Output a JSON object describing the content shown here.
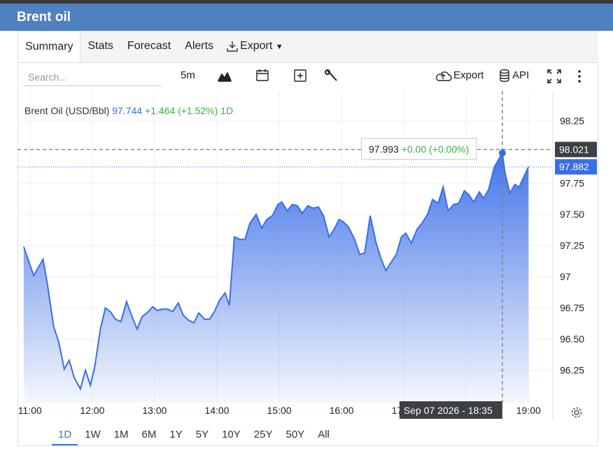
{
  "header": {
    "title": "Brent oil"
  },
  "tabs": [
    "Summary",
    "Stats",
    "Forecast",
    "Alerts",
    "Export"
  ],
  "toolbar": {
    "search": "Search...",
    "interval": "5m",
    "export": "Export",
    "api": "API"
  },
  "chart_data": {
    "type": "area",
    "legend": {
      "name": "Brent Oil (USD/Bbl)",
      "price": 97.744,
      "change": "+1.464 (+1.52%)",
      "interval": "1D"
    },
    "x": [
      10.9,
      11.06,
      11.21,
      11.28,
      11.38,
      11.46,
      11.55,
      11.63,
      11.71,
      11.81,
      11.89,
      11.97,
      12.04,
      12.13,
      12.21,
      12.29,
      12.37,
      12.46,
      12.55,
      12.63,
      12.72,
      12.8,
      12.88,
      12.97,
      13.04,
      13.12,
      13.21,
      13.29,
      13.38,
      13.46,
      13.55,
      13.63,
      13.71,
      13.8,
      13.88,
      13.96,
      14.04,
      14.13,
      14.2,
      14.28,
      14.37,
      14.45,
      14.53,
      14.63,
      14.72,
      14.8,
      14.89,
      14.98,
      15.04,
      15.13,
      15.21,
      15.29,
      15.37,
      15.46,
      15.54,
      15.63,
      15.71,
      15.8,
      15.88,
      15.96,
      16.03,
      16.11,
      16.21,
      16.29,
      16.37,
      16.46,
      16.55,
      16.63,
      16.71,
      16.8,
      16.88,
      16.96,
      17.03,
      17.12,
      17.21,
      17.29,
      17.38,
      17.46,
      17.55,
      17.63,
      17.71,
      17.8,
      17.88,
      17.97,
      18.04,
      18.12,
      18.21,
      18.28,
      18.36,
      18.45,
      18.58,
      18.62,
      18.7,
      18.78,
      18.85,
      19.0
    ],
    "series": [
      {
        "name": "Brent Oil (USD/Bbl)",
        "color": "#3a6ee8",
        "values": [
          97.24,
          97.01,
          97.14,
          96.94,
          96.6,
          96.48,
          96.26,
          96.33,
          96.19,
          96.1,
          96.25,
          96.13,
          96.28,
          96.58,
          96.75,
          96.72,
          96.66,
          96.64,
          96.8,
          96.69,
          96.58,
          96.68,
          96.71,
          96.76,
          96.73,
          96.74,
          96.74,
          96.72,
          96.79,
          96.69,
          96.65,
          96.63,
          96.71,
          96.66,
          96.66,
          96.72,
          96.81,
          96.87,
          96.77,
          97.32,
          97.3,
          97.3,
          97.43,
          97.5,
          97.39,
          97.46,
          97.49,
          97.58,
          97.6,
          97.53,
          97.58,
          97.57,
          97.51,
          97.57,
          97.55,
          97.56,
          97.49,
          97.32,
          97.38,
          97.46,
          97.44,
          97.4,
          97.3,
          97.18,
          97.19,
          97.49,
          97.28,
          97.15,
          97.05,
          97.12,
          97.18,
          97.32,
          97.35,
          97.27,
          97.38,
          97.43,
          97.5,
          97.62,
          97.59,
          97.72,
          97.53,
          97.58,
          97.59,
          97.69,
          97.66,
          97.6,
          97.68,
          97.63,
          97.7,
          97.88,
          97.993,
          97.84,
          97.67,
          97.74,
          97.72,
          97.882
        ]
      }
    ],
    "xlim": [
      10.8,
      19.39
    ],
    "ylim": [
      95.99,
      98.49
    ],
    "xticks": [
      {
        "value": 11,
        "label": "11:00"
      },
      {
        "value": 12,
        "label": "12:00"
      },
      {
        "value": 13,
        "label": "13:00"
      },
      {
        "value": 14,
        "label": "14:00"
      },
      {
        "value": 15,
        "label": "15:00"
      },
      {
        "value": 16,
        "label": "16:00"
      },
      {
        "value": 17,
        "label": "17:00"
      },
      {
        "value": 18,
        "label": "18:00"
      },
      {
        "value": 19,
        "label": "19:00"
      }
    ],
    "yticks": [
      96.25,
      {
        "value": 96.5,
        "label": "96.50"
      },
      96.75,
      97,
      97.25,
      {
        "value": 97.5,
        "label": "97.50"
      },
      97.75,
      98.25
    ],
    "grid": true,
    "last_price": 97.882,
    "crosshair": {
      "x": 18.58,
      "x_label": "Sep 07 2026 - 18:35",
      "y": 98.021
    },
    "tooltip": {
      "value": 97.993,
      "change": "+0.00 (+0.00%)"
    }
  },
  "ranges": [
    "1D",
    "1W",
    "1M",
    "6M",
    "1Y",
    "5Y",
    "10Y",
    "25Y",
    "50Y",
    "All"
  ]
}
